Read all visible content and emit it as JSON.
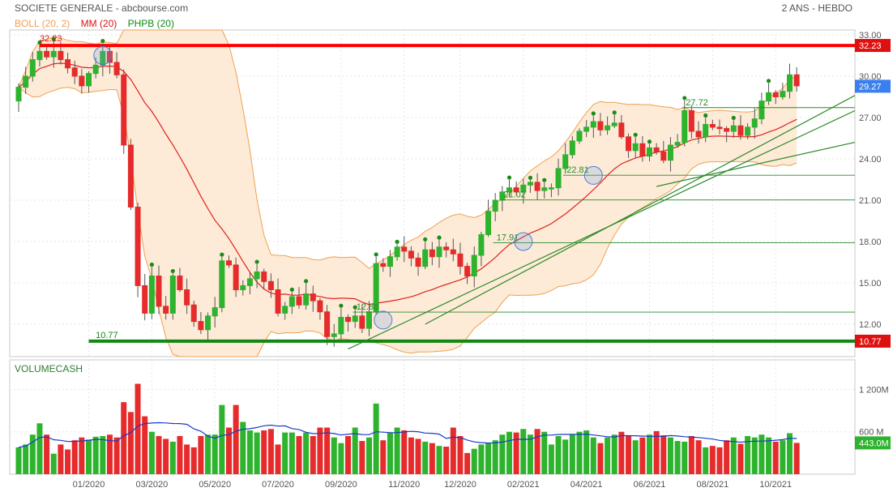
{
  "header": {
    "title": "SOCIETE GENERALE - abcbourse.com",
    "period": "2 ANS - HEBDO"
  },
  "legend": {
    "boll": "BOLL (20, 2)",
    "mm": "MM (20)",
    "phpb": "PHPB (20)"
  },
  "volume_panel": {
    "label": "VOLUMECASH"
  },
  "colors": {
    "up": "#2db32d",
    "down": "#e52b2b",
    "boll_fill": "#fde7d0",
    "boll_line": "#f0a050",
    "mm_line": "#e02020",
    "resistance": "#ff0000",
    "support": "#118811",
    "trend": "#2a8a2a",
    "volume_ma": "#1a3acc",
    "last_price": "#3a7ff0"
  },
  "chart_data": [
    {
      "type": "candlestick",
      "title": "",
      "xlabel": "",
      "ylabel": "",
      "ylim": [
        10.2,
        34.2
      ],
      "yticks": [
        "12.00",
        "15.00",
        "18.00",
        "21.00",
        "24.00",
        "27.00",
        "30.00",
        "33.00"
      ],
      "xticks": [
        {
          "label": "01/2020",
          "week": 10
        },
        {
          "label": "03/2020",
          "week": 19
        },
        {
          "label": "05/2020",
          "week": 28
        },
        {
          "label": "07/2020",
          "week": 37
        },
        {
          "label": "09/2020",
          "week": 46
        },
        {
          "label": "11/2020",
          "week": 55
        },
        {
          "label": "12/2020",
          "week": 63
        },
        {
          "label": "02/2021",
          "week": 72
        },
        {
          "label": "04/2021",
          "week": 81
        },
        {
          "label": "06/2021",
          "week": 90
        },
        {
          "label": "08/2021",
          "week": 99
        },
        {
          "label": "10/2021",
          "week": 108
        }
      ],
      "close": [
        29.2,
        30.0,
        31.2,
        31.8,
        31.4,
        31.8,
        31.2,
        30.6,
        30.0,
        29.3,
        30.2,
        30.8,
        31.8,
        31.0,
        30.1,
        25.0,
        20.5,
        14.8,
        12.8,
        15.5,
        13.3,
        12.8,
        15.5,
        14.5,
        13.4,
        12.2,
        11.6,
        12.6,
        13.2,
        16.6,
        16.3,
        14.5,
        14.8,
        15.3,
        15.8,
        15.1,
        14.5,
        12.8,
        13.3,
        14.0,
        13.4,
        14.2,
        13.7,
        12.9,
        11.1,
        11.3,
        12.5,
        12.2,
        12.6,
        11.7,
        12.9,
        16.4,
        16.2,
        16.9,
        17.6,
        17.3,
        16.8,
        16.2,
        17.4,
        16.9,
        17.6,
        17.4,
        17.1,
        16.2,
        15.5,
        17.0,
        18.5,
        20.2,
        21.0,
        21.6,
        21.9,
        21.6,
        22.1,
        22.3,
        21.7,
        21.9,
        21.9,
        23.3,
        24.3,
        25.3,
        26.0,
        26.3,
        26.7,
        26.1,
        26.4,
        26.6,
        25.6,
        24.6,
        25.1,
        24.2,
        24.8,
        24.5,
        23.9,
        25.0,
        25.2,
        27.5,
        26.0,
        25.6,
        26.5,
        26.3,
        26.2,
        26.0,
        26.4,
        25.7,
        26.3,
        26.9,
        28.2,
        28.8,
        28.5,
        28.9,
        30.1,
        29.3
      ],
      "lastline": {
        "week": 111,
        "value": 29.27
      },
      "resistance": {
        "value": 32.23,
        "label": "32.23"
      },
      "support": {
        "value": 10.77,
        "label": "10.77"
      },
      "phpb_levels": [
        {
          "value": 12.88,
          "label": "12.88",
          "week": 50
        },
        {
          "value": 17.91,
          "label": "17.91",
          "week": 70
        },
        {
          "value": 21.02,
          "label": "21.02",
          "week": 71
        },
        {
          "value": 22.81,
          "label": "22.81",
          "week": 80
        },
        {
          "value": 27.72,
          "label": "27.72",
          "week": 97
        }
      ],
      "price_tags": [
        {
          "label": "32.23",
          "value": 32.23,
          "color": "#dd1111"
        },
        {
          "label": "29.27",
          "value": 29.27,
          "color": "#3a7ff0"
        },
        {
          "label": "10.77",
          "value": 10.77,
          "color": "#dd1111"
        }
      ]
    },
    {
      "type": "bar",
      "title": "VOLUMECASH",
      "ylim": [
        0,
        1550
      ],
      "yticks": [
        "600 M",
        "1 200M"
      ],
      "last_value": "443.0M",
      "values": [
        380,
        420,
        560,
        720,
        560,
        290,
        420,
        350,
        480,
        520,
        490,
        530,
        540,
        560,
        520,
        1020,
        880,
        1280,
        820,
        600,
        540,
        500,
        460,
        540,
        420,
        380,
        540,
        560,
        560,
        980,
        660,
        980,
        740,
        620,
        590,
        620,
        640,
        420,
        590,
        590,
        540,
        590,
        540,
        660,
        660,
        520,
        440,
        540,
        660,
        470,
        520,
        1000,
        480,
        590,
        660,
        620,
        520,
        500,
        460,
        440,
        400,
        390,
        660,
        540,
        300,
        360,
        420,
        440,
        480,
        560,
        600,
        590,
        640,
        560,
        640,
        600,
        420,
        540,
        490,
        560,
        600,
        620,
        520,
        440,
        520,
        560,
        600,
        540,
        480,
        520,
        560,
        610,
        550,
        520,
        470,
        460,
        540,
        480,
        380,
        400,
        380,
        480,
        520,
        430,
        540,
        520,
        560,
        520,
        460,
        480,
        580,
        443
      ]
    }
  ]
}
